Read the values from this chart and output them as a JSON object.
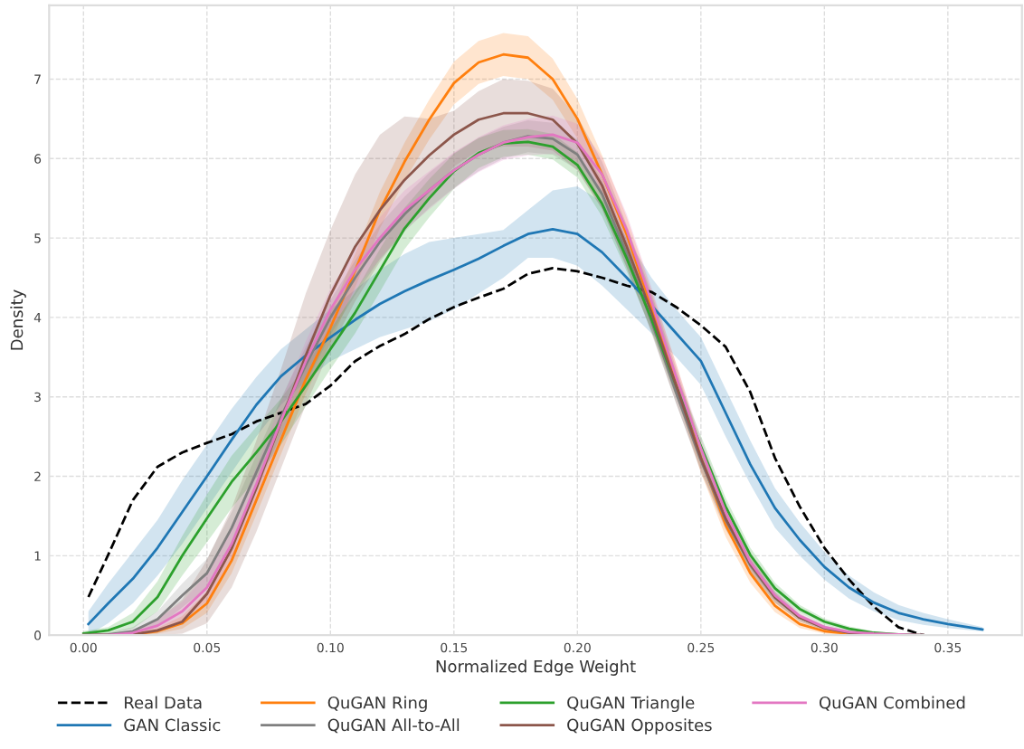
{
  "chart_data": {
    "type": "line",
    "xlabel": "Normalized Edge Weight",
    "ylabel": "Density",
    "xlim": [
      -0.0139,
      0.38
    ],
    "ylim": [
      0,
      7.93
    ],
    "xticks": [
      {
        "value": 0,
        "label": "0.00"
      },
      {
        "value": 0.05,
        "label": "0.05"
      },
      {
        "value": 0.1,
        "label": "0.10"
      },
      {
        "value": 0.15,
        "label": "0.15"
      },
      {
        "value": 0.2,
        "label": "0.20"
      },
      {
        "value": 0.25,
        "label": "0.25"
      },
      {
        "value": 0.3,
        "label": "0.30"
      },
      {
        "value": 0.35,
        "label": "0.35"
      }
    ],
    "yticks": [
      0,
      1,
      2,
      3,
      4,
      5,
      6,
      7
    ],
    "grid": true,
    "legend": "bottom",
    "marker": "none",
    "series": [
      {
        "name": "Real Data",
        "color": "#000000",
        "line_style": "dashed",
        "x": [
          0.002,
          0.01,
          0.02,
          0.03,
          0.04,
          0.05,
          0.06,
          0.07,
          0.08,
          0.09,
          0.1,
          0.11,
          0.12,
          0.13,
          0.14,
          0.15,
          0.16,
          0.17,
          0.18,
          0.19,
          0.2,
          0.21,
          0.22,
          0.23,
          0.24,
          0.25,
          0.26,
          0.27,
          0.28,
          0.29,
          0.3,
          0.31,
          0.32,
          0.33,
          0.34
        ],
        "values": [
          0.48,
          1.01,
          1.7,
          2.12,
          2.3,
          2.42,
          2.53,
          2.69,
          2.8,
          2.91,
          3.14,
          3.45,
          3.64,
          3.79,
          3.98,
          4.13,
          4.25,
          4.36,
          4.55,
          4.62,
          4.58,
          4.5,
          4.4,
          4.32,
          4.13,
          3.9,
          3.63,
          3.06,
          2.23,
          1.62,
          1.1,
          0.7,
          0.36,
          0.1,
          0
        ]
      },
      {
        "name": "GAN Classic",
        "color": "#1f77b4",
        "line_style": "solid",
        "x": [
          0.002,
          0.01,
          0.02,
          0.03,
          0.04,
          0.05,
          0.06,
          0.07,
          0.08,
          0.09,
          0.1,
          0.11,
          0.12,
          0.13,
          0.14,
          0.15,
          0.16,
          0.17,
          0.18,
          0.19,
          0.2,
          0.21,
          0.22,
          0.23,
          0.24,
          0.25,
          0.26,
          0.27,
          0.28,
          0.29,
          0.3,
          0.31,
          0.32,
          0.33,
          0.34,
          0.35,
          0.36,
          0.364
        ],
        "values": [
          0.14,
          0.4,
          0.71,
          1.1,
          1.55,
          2.0,
          2.46,
          2.9,
          3.26,
          3.52,
          3.75,
          3.97,
          4.17,
          4.33,
          4.47,
          4.6,
          4.74,
          4.9,
          5.05,
          5.11,
          5.05,
          4.82,
          4.5,
          4.15,
          3.8,
          3.45,
          2.8,
          2.15,
          1.6,
          1.2,
          0.86,
          0.6,
          0.41,
          0.28,
          0.2,
          0.14,
          0.09,
          0.07
        ],
        "lower": [
          0,
          0.15,
          0.4,
          0.75,
          1.15,
          1.6,
          2.05,
          2.5,
          2.9,
          3.2,
          3.45,
          3.6,
          3.75,
          3.85,
          3.95,
          4.1,
          4.3,
          4.5,
          4.75,
          4.75,
          4.65,
          4.4,
          4.1,
          3.8,
          3.5,
          3.15,
          2.5,
          1.9,
          1.35,
          1.0,
          0.7,
          0.46,
          0.3,
          0.19,
          0.13,
          0.09,
          0.06,
          0.05
        ],
        "upper": [
          0.3,
          0.65,
          1.05,
          1.45,
          1.95,
          2.4,
          2.85,
          3.25,
          3.6,
          3.85,
          4.1,
          4.35,
          4.6,
          4.8,
          4.95,
          5.0,
          5.05,
          5.1,
          5.35,
          5.6,
          5.65,
          5.45,
          5.0,
          4.5,
          4.1,
          3.75,
          3.1,
          2.45,
          1.85,
          1.42,
          1.05,
          0.75,
          0.54,
          0.38,
          0.28,
          0.2,
          0.13,
          0.1
        ]
      },
      {
        "name": "QuGAN Ring",
        "color": "#ff7f0e",
        "line_style": "solid",
        "x": [
          0,
          0.01,
          0.02,
          0.03,
          0.04,
          0.05,
          0.06,
          0.07,
          0.08,
          0.09,
          0.1,
          0.11,
          0.12,
          0.13,
          0.14,
          0.15,
          0.16,
          0.17,
          0.18,
          0.19,
          0.2,
          0.21,
          0.22,
          0.23,
          0.24,
          0.25,
          0.26,
          0.27,
          0.28,
          0.29,
          0.3,
          0.31,
          0.32,
          0.33,
          0.34
        ],
        "values": [
          0,
          0,
          0.01,
          0.05,
          0.15,
          0.4,
          0.94,
          1.7,
          2.46,
          3.22,
          3.87,
          4.59,
          5.35,
          5.96,
          6.49,
          6.95,
          7.21,
          7.31,
          7.27,
          7.0,
          6.5,
          5.8,
          5.04,
          4.13,
          3.22,
          2.23,
          1.39,
          0.78,
          0.37,
          0.14,
          0.05,
          0.02,
          null,
          null,
          null
        ],
        "lower": [
          0,
          0,
          0,
          0.02,
          0.08,
          0.28,
          0.78,
          1.52,
          2.28,
          3.04,
          3.68,
          4.38,
          5.12,
          5.72,
          6.24,
          6.68,
          6.94,
          7.04,
          7.0,
          6.74,
          6.25,
          5.56,
          4.82,
          3.92,
          3.02,
          2.05,
          1.24,
          0.66,
          0.29,
          0.09,
          0.02,
          0,
          0,
          0,
          0
        ],
        "upper": [
          0.01,
          0.01,
          0.03,
          0.09,
          0.24,
          0.55,
          1.1,
          1.88,
          2.64,
          3.4,
          4.06,
          4.8,
          5.58,
          6.2,
          6.74,
          7.22,
          7.48,
          7.58,
          7.54,
          7.26,
          6.75,
          6.04,
          5.26,
          4.34,
          3.42,
          2.41,
          1.54,
          0.9,
          0.45,
          0.19,
          0.08,
          0.04,
          0.02,
          0.01,
          0
        ]
      },
      {
        "name": "QuGAN All-to-All",
        "color": "#7f7f7f",
        "line_style": "solid",
        "x": [
          0,
          0.01,
          0.02,
          0.03,
          0.04,
          0.05,
          0.06,
          0.07,
          0.08,
          0.09,
          0.1,
          0.11,
          0.12,
          0.13,
          0.14,
          0.15,
          0.16,
          0.17,
          0.18,
          0.19,
          0.2,
          0.21,
          0.22,
          0.23,
          0.24,
          0.25,
          0.26,
          0.27,
          0.28,
          0.29,
          0.3,
          0.31,
          0.32,
          0.33,
          0.34
        ],
        "values": [
          0,
          0.01,
          0.05,
          0.2,
          0.5,
          0.78,
          1.35,
          2.05,
          2.75,
          3.4,
          4.0,
          4.5,
          4.95,
          5.3,
          5.6,
          5.85,
          6.05,
          6.2,
          6.28,
          6.25,
          6.05,
          5.55,
          4.8,
          3.95,
          3.05,
          2.2,
          1.45,
          0.88,
          0.47,
          0.22,
          0.09,
          0.03,
          0.01,
          0,
          0
        ],
        "lower": [
          0,
          0,
          0.01,
          0.1,
          0.35,
          0.6,
          1.15,
          1.83,
          2.52,
          3.17,
          3.78,
          4.28,
          4.73,
          5.08,
          5.38,
          5.63,
          5.84,
          6.0,
          6.08,
          6.05,
          5.86,
          5.37,
          4.63,
          3.8,
          2.91,
          2.08,
          1.35,
          0.8,
          0.41,
          0.18,
          0.06,
          0.01,
          0,
          0,
          0
        ],
        "upper": [
          0.01,
          0.03,
          0.1,
          0.3,
          0.65,
          0.96,
          1.55,
          2.27,
          2.98,
          3.63,
          4.22,
          4.72,
          5.17,
          5.52,
          5.82,
          6.07,
          6.26,
          6.4,
          6.48,
          6.45,
          6.24,
          5.73,
          4.97,
          4.1,
          3.19,
          2.32,
          1.55,
          0.96,
          0.53,
          0.26,
          0.12,
          0.05,
          0.02,
          0.01,
          0
        ]
      },
      {
        "name": "QuGAN Triangle",
        "color": "#2ca02c",
        "line_style": "solid",
        "x": [
          0,
          0.01,
          0.02,
          0.03,
          0.04,
          0.05,
          0.06,
          0.07,
          0.08,
          0.09,
          0.1,
          0.11,
          0.12,
          0.13,
          0.14,
          0.15,
          0.16,
          0.17,
          0.18,
          0.19,
          0.2,
          0.21,
          0.22,
          0.23,
          0.24,
          0.25,
          0.26,
          0.27,
          0.28,
          0.29,
          0.3,
          0.31,
          0.32,
          0.33,
          0.34
        ],
        "values": [
          0.02,
          0.06,
          0.17,
          0.48,
          1.0,
          1.47,
          1.93,
          2.3,
          2.69,
          3.14,
          3.6,
          4.06,
          4.59,
          5.12,
          5.5,
          5.84,
          6.07,
          6.19,
          6.21,
          6.15,
          5.92,
          5.43,
          4.74,
          3.98,
          3.14,
          2.38,
          1.62,
          1.01,
          0.59,
          0.33,
          0.17,
          0.08,
          0.03,
          0.01,
          0
        ],
        "lower": [
          0,
          0.02,
          0.08,
          0.3,
          0.75,
          1.17,
          1.6,
          1.98,
          2.4,
          2.88,
          3.35,
          3.8,
          4.32,
          4.86,
          5.26,
          5.62,
          5.88,
          6.02,
          6.05,
          5.99,
          5.76,
          5.27,
          4.58,
          3.83,
          3.0,
          2.25,
          1.51,
          0.92,
          0.52,
          0.28,
          0.13,
          0.05,
          0.01,
          0,
          0
        ],
        "upper": [
          0.05,
          0.1,
          0.28,
          0.68,
          1.25,
          1.77,
          2.26,
          2.62,
          2.98,
          3.4,
          3.85,
          4.32,
          4.86,
          5.38,
          5.74,
          6.06,
          6.26,
          6.36,
          6.37,
          6.31,
          6.08,
          5.59,
          4.9,
          4.13,
          3.28,
          2.51,
          1.73,
          1.1,
          0.66,
          0.38,
          0.21,
          0.11,
          0.05,
          0.02,
          0.01
        ]
      },
      {
        "name": "QuGAN Opposites",
        "color": "#8c564b",
        "line_style": "solid",
        "x": [
          0,
          0.01,
          0.02,
          0.03,
          0.04,
          0.05,
          0.06,
          0.07,
          0.08,
          0.09,
          0.1,
          0.11,
          0.12,
          0.13,
          0.14,
          0.15,
          0.16,
          0.17,
          0.18,
          0.19,
          0.2,
          0.21,
          0.22,
          0.23,
          0.24,
          0.25,
          0.26,
          0.27,
          0.28,
          0.29,
          0.3,
          0.31,
          0.32,
          0.33,
          0.34
        ],
        "values": [
          0,
          0,
          0.01,
          0.06,
          0.17,
          0.52,
          1.09,
          1.85,
          2.69,
          3.52,
          4.28,
          4.89,
          5.35,
          5.73,
          6.04,
          6.3,
          6.49,
          6.57,
          6.57,
          6.49,
          6.19,
          5.66,
          4.89,
          4.06,
          3.14,
          2.23,
          1.47,
          0.9,
          0.48,
          0.22,
          0.09,
          0.03,
          0.01,
          0,
          0
        ],
        "lower": [
          0,
          0,
          0,
          0,
          0.02,
          0.15,
          0.6,
          1.3,
          2.1,
          2.9,
          3.6,
          4.2,
          4.7,
          5.1,
          5.5,
          5.9,
          6.1,
          6.15,
          6.15,
          6.1,
          5.85,
          5.36,
          4.62,
          3.82,
          2.92,
          2.05,
          1.33,
          0.8,
          0.41,
          0.17,
          0.06,
          0.01,
          0,
          0,
          0
        ],
        "upper": [
          0.01,
          0.02,
          0.06,
          0.2,
          0.45,
          0.95,
          1.6,
          2.45,
          3.35,
          4.3,
          5.1,
          5.8,
          6.3,
          6.53,
          6.5,
          6.6,
          6.85,
          7.0,
          6.98,
          6.88,
          6.53,
          5.96,
          5.16,
          4.3,
          3.36,
          2.41,
          1.61,
          1.0,
          0.55,
          0.27,
          0.12,
          0.05,
          0.02,
          0.01,
          0
        ]
      },
      {
        "name": "QuGAN Combined",
        "color": "#e377c2",
        "line_style": "solid",
        "x": [
          0,
          0.01,
          0.02,
          0.03,
          0.04,
          0.05,
          0.06,
          0.07,
          0.08,
          0.09,
          0.1,
          0.11,
          0.12,
          0.13,
          0.14,
          0.15,
          0.16,
          0.17,
          0.18,
          0.19,
          0.2,
          0.21,
          0.22,
          0.23,
          0.24,
          0.25,
          0.26,
          0.27,
          0.28,
          0.29,
          0.3,
          0.31,
          0.32,
          0.33,
          0.34
        ],
        "values": [
          0,
          0,
          0.03,
          0.12,
          0.3,
          0.6,
          1.15,
          1.9,
          2.7,
          3.45,
          4.1,
          4.6,
          5.0,
          5.35,
          5.6,
          5.85,
          6.05,
          6.2,
          6.27,
          6.3,
          6.2,
          5.8,
          5.1,
          4.2,
          3.25,
          2.35,
          1.55,
          0.92,
          0.5,
          0.24,
          0.1,
          0.04,
          0.02,
          0.01,
          0
        ],
        "lower": [
          0,
          0,
          0,
          0.05,
          0.18,
          0.43,
          0.95,
          1.68,
          2.46,
          3.2,
          3.84,
          4.34,
          4.74,
          5.1,
          5.36,
          5.62,
          5.83,
          5.98,
          6.04,
          6.06,
          5.96,
          5.58,
          4.9,
          4.02,
          3.09,
          2.22,
          1.45,
          0.85,
          0.45,
          0.2,
          0.07,
          0.02,
          0.01,
          0,
          0
        ],
        "upper": [
          0.01,
          0.02,
          0.07,
          0.2,
          0.42,
          0.77,
          1.35,
          2.12,
          2.94,
          3.7,
          4.36,
          4.86,
          5.26,
          5.6,
          5.84,
          6.08,
          6.27,
          6.42,
          6.5,
          6.54,
          6.44,
          6.02,
          5.3,
          4.38,
          3.41,
          2.48,
          1.65,
          0.99,
          0.55,
          0.28,
          0.13,
          0.06,
          0.03,
          0.02,
          0.01
        ]
      }
    ]
  }
}
